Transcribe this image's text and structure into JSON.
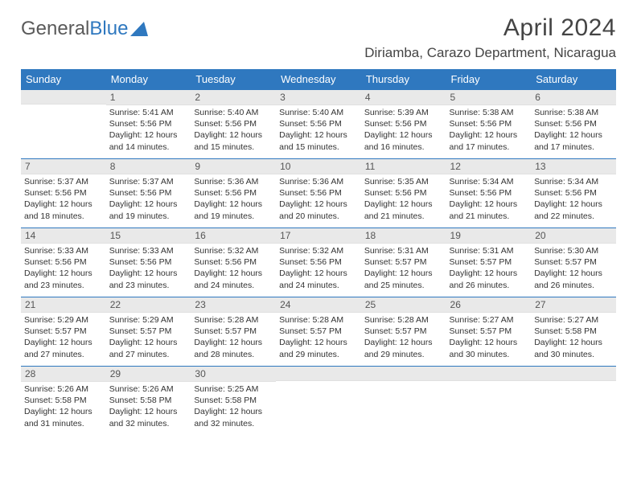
{
  "logo": {
    "text1": "General",
    "text2": "Blue"
  },
  "title": "April 2024",
  "location": "Diriamba, Carazo Department, Nicaragua",
  "weekdays": [
    "Sunday",
    "Monday",
    "Tuesday",
    "Wednesday",
    "Thursday",
    "Friday",
    "Saturday"
  ],
  "colors": {
    "header_bg": "#2f78bf",
    "header_text": "#ffffff",
    "row_border": "#2f78bf",
    "daynum_bg": "#e9e9e9",
    "text": "#333333"
  },
  "typography": {
    "title_fontsize": 30,
    "location_fontsize": 17,
    "weekday_fontsize": 13,
    "daynum_fontsize": 12,
    "info_fontsize": 10.5
  },
  "layout": {
    "cols": 7,
    "rows": 5,
    "leading_blanks": 1
  },
  "days": [
    {
      "n": "1",
      "sr": "5:41 AM",
      "ss": "5:56 PM",
      "dl": "12 hours and 14 minutes."
    },
    {
      "n": "2",
      "sr": "5:40 AM",
      "ss": "5:56 PM",
      "dl": "12 hours and 15 minutes."
    },
    {
      "n": "3",
      "sr": "5:40 AM",
      "ss": "5:56 PM",
      "dl": "12 hours and 15 minutes."
    },
    {
      "n": "4",
      "sr": "5:39 AM",
      "ss": "5:56 PM",
      "dl": "12 hours and 16 minutes."
    },
    {
      "n": "5",
      "sr": "5:38 AM",
      "ss": "5:56 PM",
      "dl": "12 hours and 17 minutes."
    },
    {
      "n": "6",
      "sr": "5:38 AM",
      "ss": "5:56 PM",
      "dl": "12 hours and 17 minutes."
    },
    {
      "n": "7",
      "sr": "5:37 AM",
      "ss": "5:56 PM",
      "dl": "12 hours and 18 minutes."
    },
    {
      "n": "8",
      "sr": "5:37 AM",
      "ss": "5:56 PM",
      "dl": "12 hours and 19 minutes."
    },
    {
      "n": "9",
      "sr": "5:36 AM",
      "ss": "5:56 PM",
      "dl": "12 hours and 19 minutes."
    },
    {
      "n": "10",
      "sr": "5:36 AM",
      "ss": "5:56 PM",
      "dl": "12 hours and 20 minutes."
    },
    {
      "n": "11",
      "sr": "5:35 AM",
      "ss": "5:56 PM",
      "dl": "12 hours and 21 minutes."
    },
    {
      "n": "12",
      "sr": "5:34 AM",
      "ss": "5:56 PM",
      "dl": "12 hours and 21 minutes."
    },
    {
      "n": "13",
      "sr": "5:34 AM",
      "ss": "5:56 PM",
      "dl": "12 hours and 22 minutes."
    },
    {
      "n": "14",
      "sr": "5:33 AM",
      "ss": "5:56 PM",
      "dl": "12 hours and 23 minutes."
    },
    {
      "n": "15",
      "sr": "5:33 AM",
      "ss": "5:56 PM",
      "dl": "12 hours and 23 minutes."
    },
    {
      "n": "16",
      "sr": "5:32 AM",
      "ss": "5:56 PM",
      "dl": "12 hours and 24 minutes."
    },
    {
      "n": "17",
      "sr": "5:32 AM",
      "ss": "5:56 PM",
      "dl": "12 hours and 24 minutes."
    },
    {
      "n": "18",
      "sr": "5:31 AM",
      "ss": "5:57 PM",
      "dl": "12 hours and 25 minutes."
    },
    {
      "n": "19",
      "sr": "5:31 AM",
      "ss": "5:57 PM",
      "dl": "12 hours and 26 minutes."
    },
    {
      "n": "20",
      "sr": "5:30 AM",
      "ss": "5:57 PM",
      "dl": "12 hours and 26 minutes."
    },
    {
      "n": "21",
      "sr": "5:29 AM",
      "ss": "5:57 PM",
      "dl": "12 hours and 27 minutes."
    },
    {
      "n": "22",
      "sr": "5:29 AM",
      "ss": "5:57 PM",
      "dl": "12 hours and 27 minutes."
    },
    {
      "n": "23",
      "sr": "5:28 AM",
      "ss": "5:57 PM",
      "dl": "12 hours and 28 minutes."
    },
    {
      "n": "24",
      "sr": "5:28 AM",
      "ss": "5:57 PM",
      "dl": "12 hours and 29 minutes."
    },
    {
      "n": "25",
      "sr": "5:28 AM",
      "ss": "5:57 PM",
      "dl": "12 hours and 29 minutes."
    },
    {
      "n": "26",
      "sr": "5:27 AM",
      "ss": "5:57 PM",
      "dl": "12 hours and 30 minutes."
    },
    {
      "n": "27",
      "sr": "5:27 AM",
      "ss": "5:58 PM",
      "dl": "12 hours and 30 minutes."
    },
    {
      "n": "28",
      "sr": "5:26 AM",
      "ss": "5:58 PM",
      "dl": "12 hours and 31 minutes."
    },
    {
      "n": "29",
      "sr": "5:26 AM",
      "ss": "5:58 PM",
      "dl": "12 hours and 32 minutes."
    },
    {
      "n": "30",
      "sr": "5:25 AM",
      "ss": "5:58 PM",
      "dl": "12 hours and 32 minutes."
    }
  ],
  "labels": {
    "sunrise": "Sunrise: ",
    "sunset": "Sunset: ",
    "daylight": "Daylight: "
  }
}
